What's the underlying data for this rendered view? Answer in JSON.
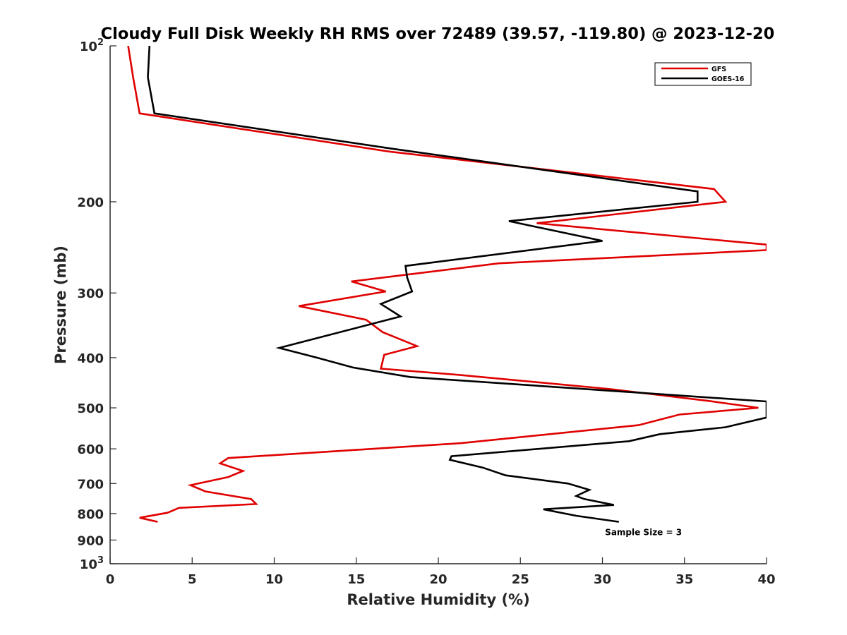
{
  "chart_data": {
    "type": "line",
    "title": "Cloudy Full Disk Weekly RH RMS over 72489 (39.57, -119.80) @ 2023-12-20",
    "xlabel": "Relative Humidity (%)",
    "ylabel": "Pressure (mb)",
    "xlim": [
      0,
      40
    ],
    "ylim": [
      100,
      1000
    ],
    "y_scale": "log",
    "y_reversed": true,
    "grid": false,
    "legend_position": "top-right",
    "x_ticks": [
      {
        "value": 0,
        "label": "0"
      },
      {
        "value": 5,
        "label": "5"
      },
      {
        "value": 10,
        "label": "10"
      },
      {
        "value": 15,
        "label": "15"
      },
      {
        "value": 20,
        "label": "20"
      },
      {
        "value": 25,
        "label": "25"
      },
      {
        "value": 30,
        "label": "30"
      },
      {
        "value": 35,
        "label": "35"
      },
      {
        "value": 40,
        "label": "40"
      }
    ],
    "y_ticks": [
      {
        "value": 100,
        "base": "10",
        "exp": "2"
      },
      {
        "value": 200,
        "label": "200"
      },
      {
        "value": 300,
        "label": "300"
      },
      {
        "value": 400,
        "label": "400"
      },
      {
        "value": 500,
        "label": "500"
      },
      {
        "value": 600,
        "label": "600"
      },
      {
        "value": 700,
        "label": "700"
      },
      {
        "value": 800,
        "label": "800"
      },
      {
        "value": 900,
        "label": "900"
      },
      {
        "value": 1000,
        "base": "10",
        "exp": "3"
      }
    ],
    "series": [
      {
        "name": "GFS",
        "color": "#e00000",
        "points": [
          [
            1.1,
            100
          ],
          [
            1.4,
            115
          ],
          [
            1.8,
            135
          ],
          [
            17,
            160
          ],
          [
            36.8,
            189
          ],
          [
            37.5,
            200
          ],
          [
            26,
            220
          ],
          [
            40,
            242
          ],
          [
            40,
            248
          ],
          [
            23.7,
            263
          ],
          [
            14.7,
            285
          ],
          [
            16.8,
            298
          ],
          [
            11.5,
            318
          ],
          [
            15.6,
            338
          ],
          [
            16.6,
            357
          ],
          [
            18.7,
            380
          ],
          [
            16.7,
            395
          ],
          [
            16.5,
            420
          ],
          [
            21.3,
            432
          ],
          [
            30.5,
            460
          ],
          [
            36.5,
            485
          ],
          [
            39.5,
            500
          ],
          [
            34.7,
            515
          ],
          [
            32.2,
            540
          ],
          [
            21.4,
            585
          ],
          [
            7.2,
            625
          ],
          [
            6.7,
            640
          ],
          [
            8.1,
            662
          ],
          [
            7.2,
            680
          ],
          [
            4.9,
            705
          ],
          [
            5.8,
            725
          ],
          [
            8.6,
            750
          ],
          [
            8.9,
            767
          ],
          [
            4.2,
            780
          ],
          [
            3.5,
            797
          ],
          [
            1.8,
            815
          ],
          [
            2.9,
            830
          ]
        ]
      },
      {
        "name": "GOES-16",
        "color": "#000000",
        "points": [
          [
            2.4,
            100
          ],
          [
            2.3,
            115
          ],
          [
            2.7,
            135
          ],
          [
            17.2,
            158
          ],
          [
            35.8,
            191
          ],
          [
            35.8,
            200
          ],
          [
            24.3,
            218
          ],
          [
            30,
            238
          ],
          [
            18.0,
            266
          ],
          [
            18.1,
            280
          ],
          [
            18.4,
            298
          ],
          [
            16.5,
            315
          ],
          [
            17.7,
            333
          ],
          [
            10.3,
            383
          ],
          [
            12.6,
            400
          ],
          [
            14.8,
            418
          ],
          [
            18.3,
            436
          ],
          [
            40,
            486
          ],
          [
            40,
            522
          ],
          [
            37.5,
            545
          ],
          [
            33.5,
            562
          ],
          [
            31.6,
            580
          ],
          [
            20.8,
            620
          ],
          [
            20.7,
            630
          ],
          [
            22.7,
            652
          ],
          [
            24.1,
            675
          ],
          [
            27.9,
            700
          ],
          [
            29.2,
            720
          ],
          [
            28.4,
            740
          ],
          [
            28.9,
            750
          ],
          [
            30.7,
            770
          ],
          [
            26.4,
            785
          ],
          [
            28.4,
            808
          ],
          [
            31.0,
            830
          ]
        ]
      }
    ],
    "annotations": [
      {
        "text": "Sample Size = 3",
        "x": 32.5,
        "y": 870
      }
    ]
  }
}
